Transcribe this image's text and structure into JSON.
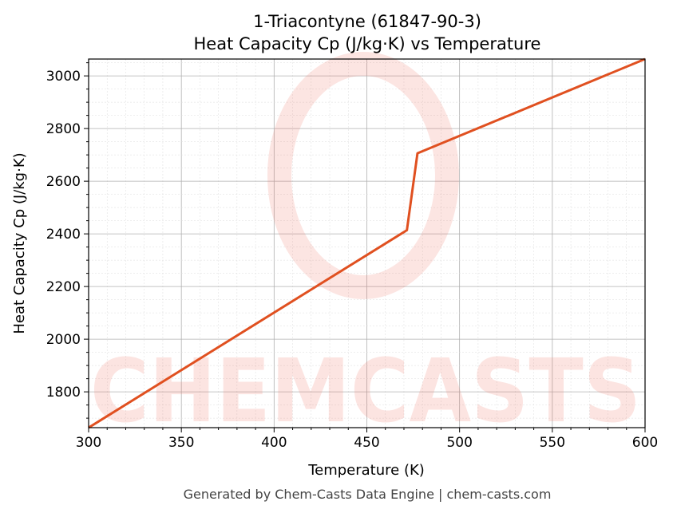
{
  "chart_data": {
    "type": "line",
    "title": "1-Triacontyne (61847-90-3)",
    "subtitle": "Heat Capacity Cp (J/kg·K) vs Temperature",
    "xlabel": "Temperature (K)",
    "ylabel": "Heat Capacity Cp (J/kg·K)",
    "xlim": [
      300,
      600
    ],
    "ylim": [
      1664,
      3064
    ],
    "xticks": [
      300,
      350,
      400,
      450,
      500,
      550,
      600
    ],
    "yticks": [
      1800,
      2000,
      2200,
      2400,
      2600,
      2800,
      3000
    ],
    "grid": true,
    "series": [
      {
        "name": "Cp",
        "color": "#e05020",
        "x": [
          300,
          471.6,
          477.3,
          600
        ],
        "y": [
          1664,
          2414,
          2706,
          3064
        ]
      }
    ],
    "watermark": "CHEMCASTS",
    "footer": "Generated by Chem-Casts Data Engine | chem-casts.com"
  }
}
